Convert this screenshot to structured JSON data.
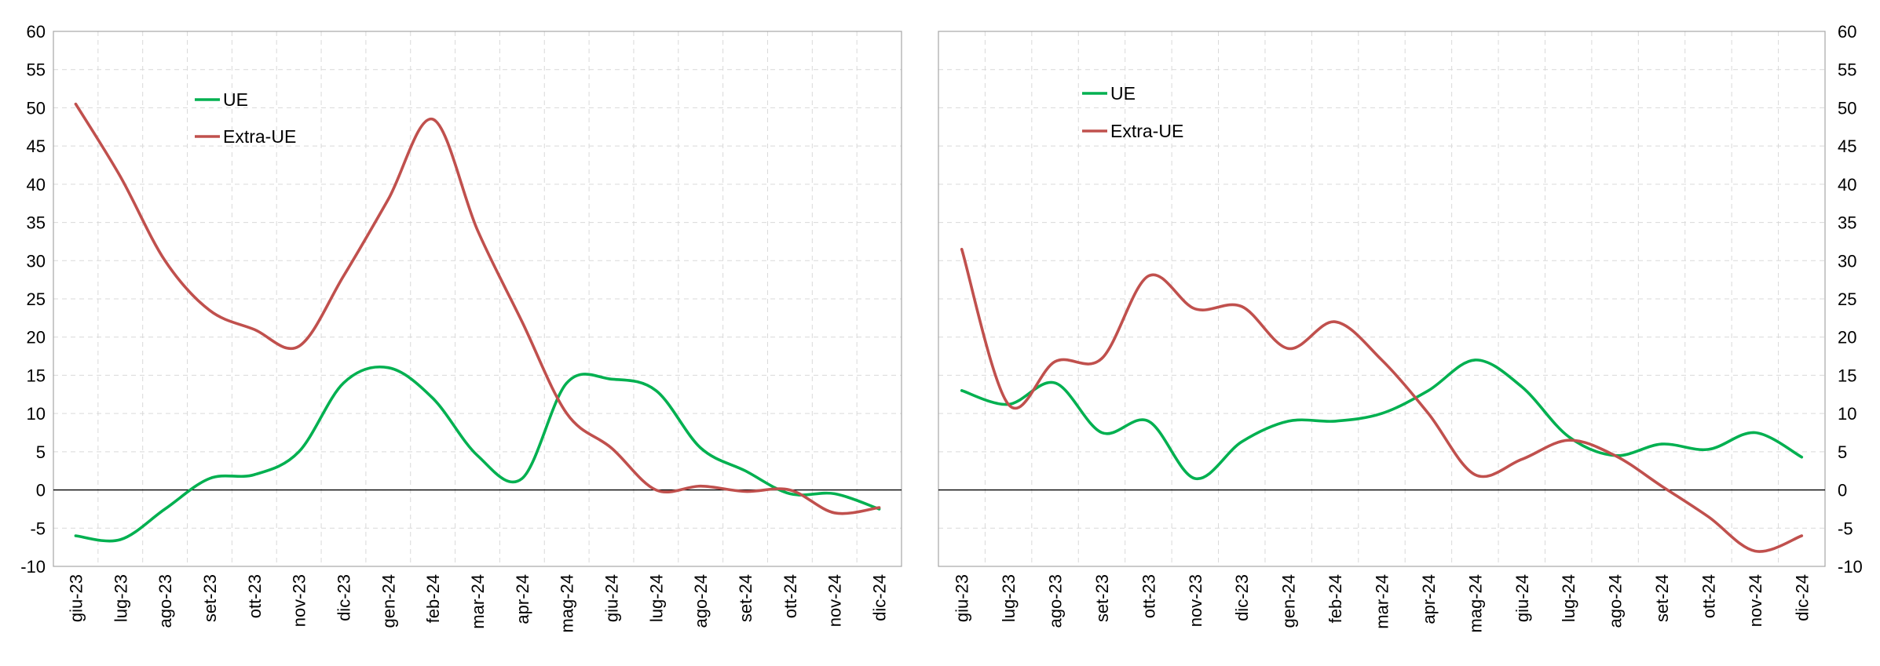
{
  "chart_data": [
    {
      "type": "line",
      "y_axis_side": "left",
      "ylim": [
        -10,
        60
      ],
      "yticks": [
        -10,
        -5,
        0,
        5,
        10,
        15,
        20,
        25,
        30,
        35,
        40,
        45,
        50,
        55,
        60
      ],
      "categories": [
        "giu-23",
        "lug-23",
        "ago-23",
        "set-23",
        "ott-23",
        "nov-23",
        "dic-23",
        "gen-24",
        "feb-24",
        "mar-24",
        "apr-24",
        "mag-24",
        "giu-24",
        "lug-24",
        "ago-24",
        "set-24",
        "ott-24",
        "nov-24",
        "dic-24"
      ],
      "grid": "dashed",
      "legend_position": "top-left",
      "series": [
        {
          "name": "UE",
          "color": "#00b050",
          "values": [
            -6,
            -6.5,
            -2.5,
            1.5,
            2,
            5,
            14,
            16,
            12,
            4.5,
            1.5,
            14,
            14.5,
            13,
            5.5,
            2.5,
            -0.5,
            -0.5,
            -2.5
          ]
        },
        {
          "name": "Extra-UE",
          "color": "#c0504d",
          "values": [
            50.5,
            41,
            30,
            23.5,
            21,
            18.8,
            28,
            38,
            48.5,
            34,
            22,
            10,
            5.5,
            0,
            0.5,
            -0.2,
            0,
            -3,
            -2.3
          ]
        }
      ]
    },
    {
      "type": "line",
      "y_axis_side": "right",
      "ylim": [
        -10,
        60
      ],
      "yticks": [
        -10,
        -5,
        0,
        5,
        10,
        15,
        20,
        25,
        30,
        35,
        40,
        45,
        50,
        55,
        60
      ],
      "categories": [
        "giu-23",
        "lug-23",
        "ago-23",
        "set-23",
        "ott-23",
        "nov-23",
        "dic-23",
        "gen-24",
        "feb-24",
        "mar-24",
        "apr-24",
        "mag-24",
        "giu-24",
        "lug-24",
        "ago-24",
        "set-24",
        "ott-24",
        "nov-24",
        "dic-24"
      ],
      "grid": "dashed",
      "legend_position": "top-left",
      "series": [
        {
          "name": "UE",
          "color": "#00b050",
          "values": [
            13,
            11.2,
            14,
            7.5,
            9,
            1.5,
            6.3,
            9,
            9,
            10,
            13,
            17,
            13.5,
            7,
            4.5,
            6,
            5.3,
            7.5,
            4.3
          ]
        },
        {
          "name": "Extra-UE",
          "color": "#c0504d",
          "values": [
            31.5,
            11.2,
            16.8,
            17.2,
            28,
            23.7,
            24,
            18.5,
            22,
            17,
            10,
            2,
            4,
            6.5,
            4.5,
            0.5,
            -3.5,
            -8,
            -6
          ]
        }
      ]
    }
  ]
}
